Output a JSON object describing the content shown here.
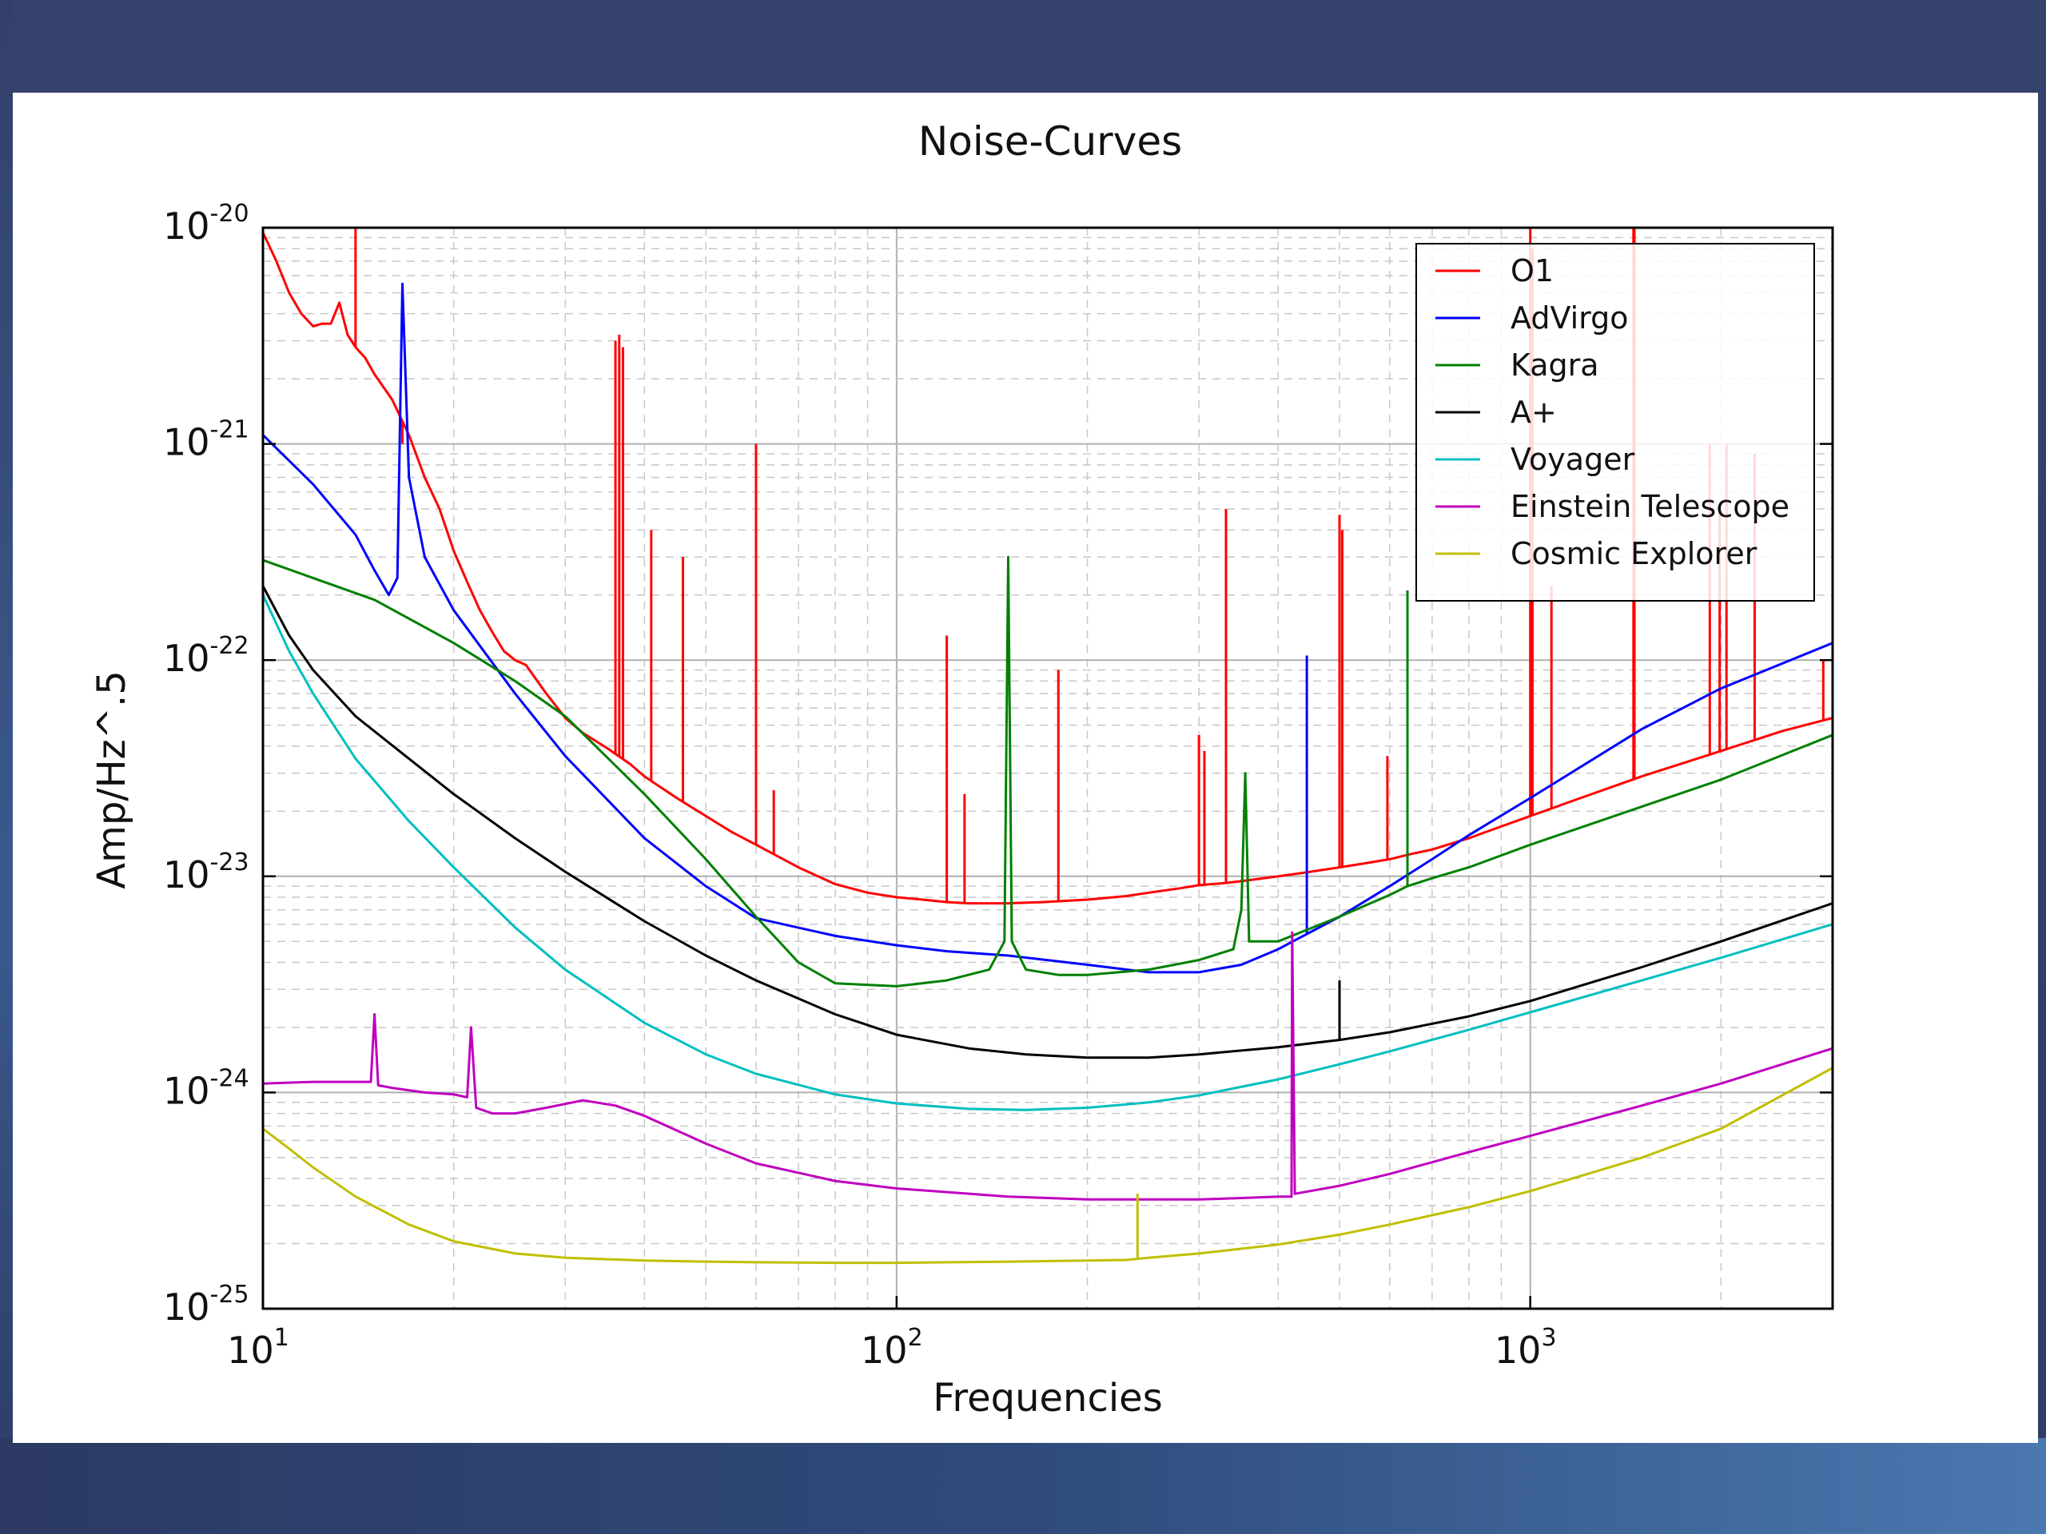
{
  "chart_data": {
    "type": "line",
    "title": "Noise-Curves",
    "xlabel": "Frequencies",
    "ylabel": "Amp/Hz^.5",
    "xscale": "log",
    "yscale": "log",
    "xlim": [
      10,
      3000
    ],
    "ylim": [
      1e-25,
      1e-20
    ],
    "grid": true,
    "legend_position": "top-right",
    "x_ticks": [
      {
        "value": 10,
        "base": "10",
        "exp": "1"
      },
      {
        "value": 100,
        "base": "10",
        "exp": "2"
      },
      {
        "value": 1000,
        "base": "10",
        "exp": "3"
      }
    ],
    "y_ticks": [
      {
        "value": 1e-20,
        "base": "10",
        "exp": "-20"
      },
      {
        "value": 1e-21,
        "base": "10",
        "exp": "-21"
      },
      {
        "value": 1e-22,
        "base": "10",
        "exp": "-22"
      },
      {
        "value": 1e-23,
        "base": "10",
        "exp": "-23"
      },
      {
        "value": 1e-24,
        "base": "10",
        "exp": "-24"
      },
      {
        "value": 1e-25,
        "base": "10",
        "exp": "-25"
      }
    ],
    "series": [
      {
        "name": "O1",
        "color": "#ff0000",
        "x": [
          10,
          10.5,
          11,
          11.5,
          12,
          12.4,
          12.8,
          13.2,
          13.6,
          14,
          14.5,
          15,
          16,
          17,
          18,
          19,
          20,
          21,
          22,
          23,
          24,
          25,
          26,
          28,
          30,
          32,
          35,
          38,
          40,
          45,
          50,
          55,
          60,
          70,
          80,
          90,
          100,
          110,
          120,
          130,
          150,
          170,
          200,
          230,
          250,
          280,
          300,
          330,
          360,
          400,
          450,
          500,
          550,
          600,
          650,
          700,
          800,
          900,
          1000,
          1200,
          1500,
          2000,
          2500,
          3000
        ],
        "y": [
          9.5e-21,
          7e-21,
          5e-21,
          4e-21,
          3.5e-21,
          3.6e-21,
          3.6e-21,
          4.5e-21,
          3.2e-21,
          2.8e-21,
          2.5e-21,
          2.1e-21,
          1.6e-21,
          1.1e-21,
          7e-22,
          5e-22,
          3.2e-22,
          2.3e-22,
          1.7e-22,
          1.35e-22,
          1.1e-22,
          1e-22,
          9.5e-23,
          7e-23,
          5.4e-23,
          4.6e-23,
          3.9e-23,
          3.3e-23,
          2.9e-23,
          2.3e-23,
          1.9e-23,
          1.6e-23,
          1.4e-23,
          1.1e-23,
          9.2e-24,
          8.4e-24,
          8e-24,
          7.8e-24,
          7.6e-24,
          7.5e-24,
          7.5e-24,
          7.6e-24,
          7.8e-24,
          8.1e-24,
          8.4e-24,
          8.8e-24,
          9.1e-24,
          9.3e-24,
          9.6e-24,
          1e-23,
          1.05e-23,
          1.1e-23,
          1.15e-23,
          1.2e-23,
          1.27e-23,
          1.33e-23,
          1.5e-23,
          1.7e-23,
          1.9e-23,
          2.3e-23,
          2.9e-23,
          3.8e-23,
          4.7e-23,
          5.4e-23
        ],
        "lines": [
          {
            "x": 14,
            "top": 1e-20
          },
          {
            "x": 16.6,
            "top": 1e-21
          },
          {
            "x": 36,
            "top": 3e-21
          },
          {
            "x": 36.5,
            "top": 3.2e-21
          },
          {
            "x": 37,
            "top": 2.8e-21
          },
          {
            "x": 41,
            "top": 4e-22
          },
          {
            "x": 46,
            "top": 3e-22
          },
          {
            "x": 60,
            "top": 1e-21
          },
          {
            "x": 64,
            "top": 2.5e-23
          },
          {
            "x": 120,
            "top": 1.3e-22
          },
          {
            "x": 128,
            "top": 2.4e-23
          },
          {
            "x": 180,
            "top": 9e-23
          },
          {
            "x": 300,
            "top": 4.5e-23
          },
          {
            "x": 306,
            "top": 3.8e-23
          },
          {
            "x": 331,
            "top": 5e-22
          },
          {
            "x": 500,
            "top": 4.7e-22
          },
          {
            "x": 505,
            "top": 4e-22
          },
          {
            "x": 595,
            "top": 3.6e-23
          },
          {
            "x": 1000,
            "top": 1e-20
          },
          {
            "x": 1008,
            "top": 8e-21
          },
          {
            "x": 1080,
            "top": 2.2e-22
          },
          {
            "x": 1455,
            "top": 1e-20
          },
          {
            "x": 1460,
            "top": 1e-20
          },
          {
            "x": 1920,
            "top": 1e-21
          },
          {
            "x": 1990,
            "top": 5e-22
          },
          {
            "x": 2040,
            "top": 1e-21
          },
          {
            "x": 2260,
            "top": 9e-22
          },
          {
            "x": 2900,
            "top": 1e-22
          }
        ]
      },
      {
        "name": "AdVirgo",
        "color": "#0000ff",
        "x": [
          10,
          12,
          14,
          15,
          15.8,
          16.3,
          16.6,
          17,
          18,
          20,
          25,
          30,
          40,
          50,
          60,
          80,
          100,
          120,
          150,
          200,
          250,
          300,
          350,
          400,
          500,
          600,
          700,
          800,
          1000,
          1500,
          2000,
          3000
        ],
        "y": [
          1.1e-21,
          6.5e-22,
          3.8e-22,
          2.6e-22,
          2e-22,
          2.4e-22,
          5.5e-21,
          7e-22,
          3e-22,
          1.7e-22,
          7e-23,
          3.6e-23,
          1.5e-23,
          9e-24,
          6.4e-24,
          5.3e-24,
          4.8e-24,
          4.5e-24,
          4.3e-24,
          3.9e-24,
          3.6e-24,
          3.6e-24,
          3.9e-24,
          4.6e-24,
          6.5e-24,
          9e-24,
          1.2e-23,
          1.55e-23,
          2.3e-23,
          4.8e-23,
          7.4e-23,
          1.2e-22
        ],
        "lines": [
          {
            "x": 444,
            "top": 1.05e-22
          }
        ]
      },
      {
        "name": "Kagra",
        "color": "#008000",
        "x": [
          10,
          15,
          20,
          25,
          30,
          40,
          50,
          60,
          70,
          80,
          100,
          120,
          140,
          148,
          150,
          152,
          160,
          180,
          200,
          250,
          300,
          340,
          350,
          355,
          360,
          400,
          500,
          600,
          640,
          700,
          800,
          1000,
          1500,
          2000,
          3000
        ],
        "y": [
          2.9e-22,
          1.9e-22,
          1.2e-22,
          8e-23,
          5.5e-23,
          2.4e-23,
          1.2e-23,
          6.5e-24,
          4e-24,
          3.2e-24,
          3.1e-24,
          3.3e-24,
          3.7e-24,
          5e-24,
          3e-22,
          5e-24,
          3.7e-24,
          3.5e-24,
          3.5e-24,
          3.7e-24,
          4.1e-24,
          4.6e-24,
          7e-24,
          3e-23,
          5e-24,
          5e-24,
          6.5e-24,
          8.2e-24,
          9e-24,
          9.8e-24,
          1.1e-23,
          1.4e-23,
          2.1e-23,
          2.8e-23,
          4.5e-23
        ],
        "lines": [
          {
            "x": 640,
            "top": 2.1e-22
          }
        ]
      },
      {
        "name": "A+",
        "color": "#000000",
        "x": [
          10,
          11,
          12,
          14,
          17,
          20,
          25,
          30,
          40,
          50,
          60,
          80,
          100,
          130,
          160,
          200,
          250,
          300,
          400,
          500,
          600,
          800,
          1000,
          1500,
          2000,
          3000
        ],
        "y": [
          2.2e-22,
          1.3e-22,
          9e-23,
          5.5e-23,
          3.5e-23,
          2.4e-23,
          1.5e-23,
          1.05e-23,
          6.2e-24,
          4.3e-24,
          3.3e-24,
          2.3e-24,
          1.85e-24,
          1.6e-24,
          1.5e-24,
          1.45e-24,
          1.45e-24,
          1.5e-24,
          1.62e-24,
          1.75e-24,
          1.9e-24,
          2.25e-24,
          2.65e-24,
          3.8e-24,
          5e-24,
          7.5e-24
        ],
        "lines": [
          {
            "x": 500,
            "top": 3.3e-24
          }
        ]
      },
      {
        "name": "Voyager",
        "color": "#00bfbf",
        "x": [
          10,
          11,
          12,
          14,
          17,
          20,
          25,
          30,
          40,
          50,
          60,
          80,
          100,
          130,
          160,
          200,
          250,
          300,
          400,
          500,
          600,
          800,
          1000,
          1500,
          2000,
          3000
        ],
        "y": [
          2e-22,
          1.1e-22,
          7e-23,
          3.5e-23,
          1.8e-23,
          1.1e-23,
          5.8e-24,
          3.7e-24,
          2.1e-24,
          1.5e-24,
          1.22e-24,
          9.8e-25,
          8.9e-25,
          8.4e-25,
          8.3e-25,
          8.5e-25,
          9e-25,
          9.7e-25,
          1.15e-24,
          1.35e-24,
          1.55e-24,
          1.95e-24,
          2.35e-24,
          3.3e-24,
          4.2e-24,
          6e-24
        ],
        "lines": []
      },
      {
        "name": "Einstein Telescope",
        "color": "#bf00bf",
        "x": [
          10,
          12,
          14,
          14.8,
          15,
          15.2,
          16,
          18,
          20,
          21,
          21.3,
          21.7,
          23,
          25,
          28,
          32,
          36,
          40,
          50,
          60,
          80,
          100,
          150,
          200,
          250,
          300,
          350,
          400,
          420,
          421,
          425,
          500,
          600,
          800,
          1000,
          1500,
          2000,
          3000
        ],
        "y": [
          1.1e-24,
          1.12e-24,
          1.12e-24,
          1.12e-24,
          2.3e-24,
          1.08e-24,
          1.05e-24,
          1e-24,
          9.8e-25,
          9.5e-25,
          2e-24,
          8.5e-25,
          8e-25,
          8e-25,
          8.5e-25,
          9.2e-25,
          8.7e-25,
          7.8e-25,
          5.8e-25,
          4.7e-25,
          3.9e-25,
          3.6e-25,
          3.3e-25,
          3.2e-25,
          3.2e-25,
          3.2e-25,
          3.25e-25,
          3.3e-25,
          3.3e-25,
          5.5e-24,
          3.4e-25,
          3.7e-25,
          4.2e-25,
          5.3e-25,
          6.3e-25,
          8.7e-25,
          1.1e-24,
          1.6e-24
        ],
        "lines": []
      },
      {
        "name": "Cosmic Explorer",
        "color": "#bfbf00",
        "x": [
          10,
          11,
          12,
          14,
          17,
          20,
          25,
          30,
          40,
          50,
          60,
          80,
          100,
          150,
          200,
          230,
          240,
          250,
          300,
          400,
          500,
          600,
          800,
          1000,
          1500,
          2000,
          3000
        ],
        "y": [
          6.8e-25,
          5.5e-25,
          4.5e-25,
          3.3e-25,
          2.45e-25,
          2.05e-25,
          1.8e-25,
          1.72e-25,
          1.67e-25,
          1.65e-25,
          1.64e-25,
          1.63e-25,
          1.63e-25,
          1.65e-25,
          1.67e-25,
          1.68e-25,
          1.7e-25,
          1.72e-25,
          1.8e-25,
          1.98e-25,
          2.2e-25,
          2.45e-25,
          2.95e-25,
          3.5e-25,
          5e-25,
          6.8e-25,
          1.3e-24
        ],
        "lines": [
          {
            "x": 240,
            "top": 3.4e-25
          }
        ]
      }
    ]
  }
}
